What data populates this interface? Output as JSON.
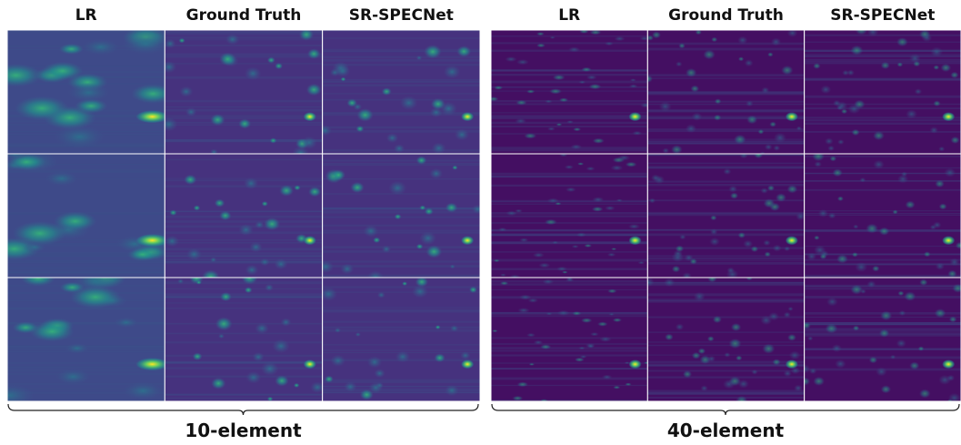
{
  "panels": [
    {
      "columns": [
        "LR",
        "Ground Truth",
        "SR-SPECNet"
      ],
      "label": "10-element"
    },
    {
      "columns": [
        "LR",
        "Ground Truth",
        "SR-SPECNet"
      ],
      "label": "40-element"
    }
  ]
}
